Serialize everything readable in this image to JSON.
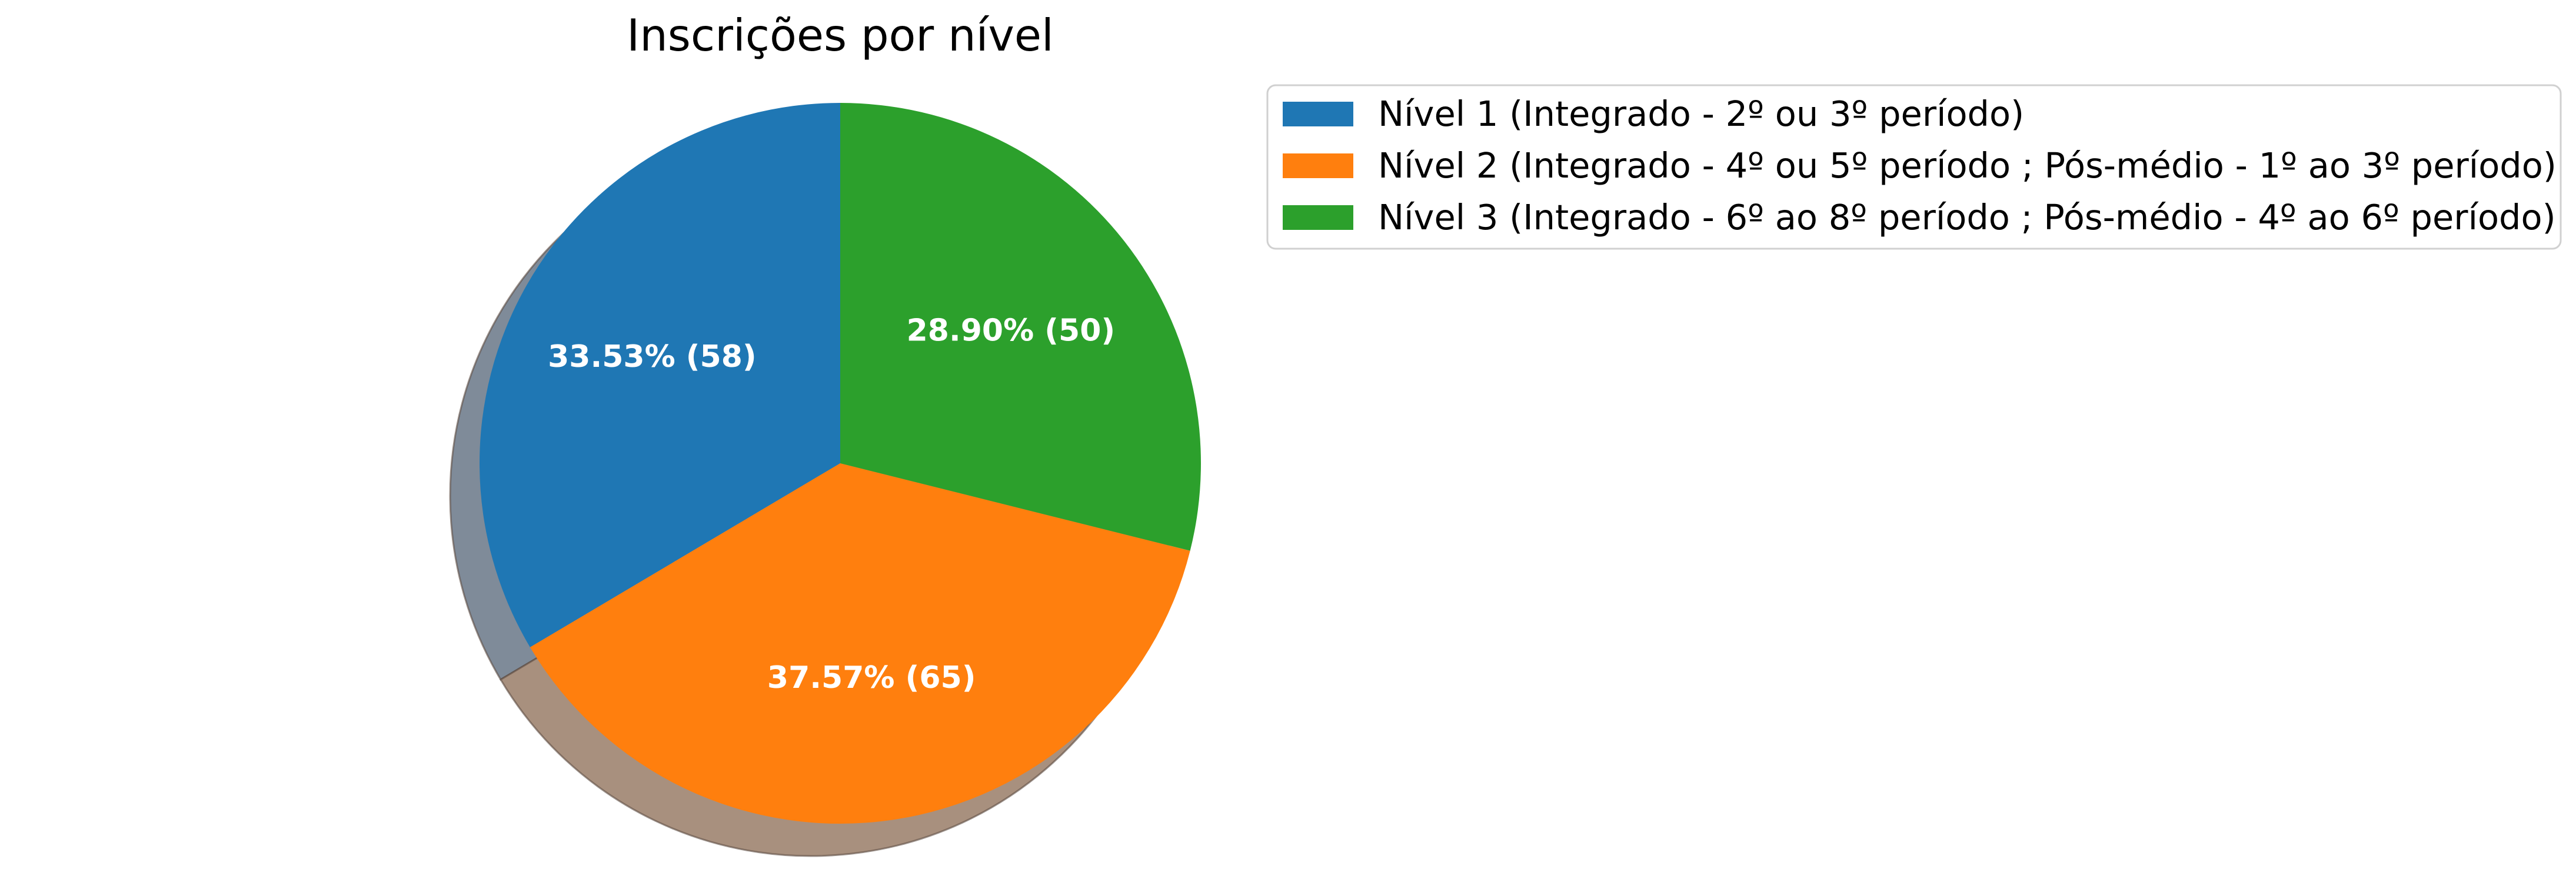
{
  "chart_data": {
    "type": "pie",
    "title": "Inscrições por nível",
    "shadow": true,
    "start_angle_deg": 90,
    "direction": "counterclockwise",
    "legend_position": "upper-right",
    "slices": [
      {
        "label": "Nível 1 (Integrado - 2º ou 3º período)",
        "value": 58,
        "percent": 33.53,
        "display": "33.53%  (58)",
        "color": "#1f77b4",
        "shadow_color": "#7f8b99"
      },
      {
        "label": "Nível 2 (Integrado - 4º ou 5º período ; Pós-médio - 1º ao 3º período)",
        "value": 65,
        "percent": 37.57,
        "display": "37.57%  (65)",
        "color": "#ff7f0e",
        "shadow_color": "#a8907e"
      },
      {
        "label": "Nível 3 (Integrado - 6º ao 8º período ; Pós-médio - 4º ao 6º período)",
        "value": 50,
        "percent": 28.9,
        "display": "28.90%  (50)",
        "color": "#2ca02c",
        "shadow_color": "#7f9a7f"
      }
    ]
  }
}
